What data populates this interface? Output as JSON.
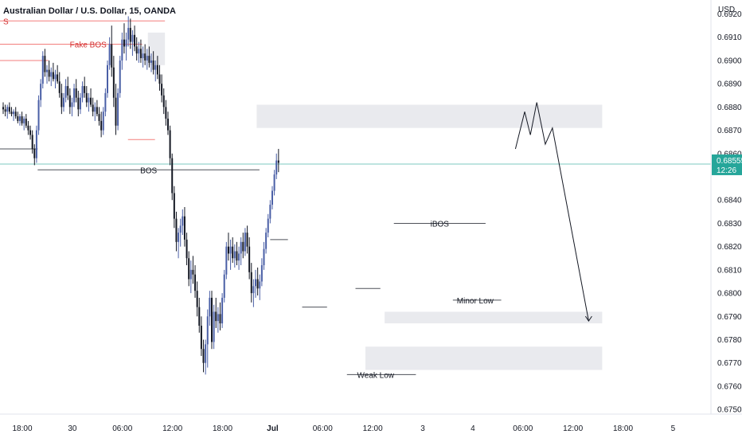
{
  "header": {
    "title": "Australian Dollar / U.S. Dollar, 15, OANDA",
    "currency": "USD"
  },
  "price_tag": {
    "price": "0.68555",
    "countdown": "12:26"
  },
  "colors": {
    "up": "#4a5fa6",
    "down": "#131722",
    "accent_line": "#26a69a",
    "tag_bg": "#26a69a",
    "zone": "#e9eaee",
    "bos_red": "#ef5350"
  },
  "chart_data": {
    "type": "candlestick",
    "title": "Australian Dollar / U.S. Dollar, 15, OANDA",
    "ylim": [
      0.6748,
      0.6926
    ],
    "y_ticks": [
      {
        "label": "0.69200",
        "value": 0.692
      },
      {
        "label": "0.69100",
        "value": 0.691
      },
      {
        "label": "0.69000",
        "value": 0.69
      },
      {
        "label": "0.68900",
        "value": 0.689
      },
      {
        "label": "0.68800",
        "value": 0.688
      },
      {
        "label": "0.68700",
        "value": 0.687
      },
      {
        "label": "0.68600",
        "value": 0.686
      },
      {
        "label": "0.68400",
        "value": 0.684
      },
      {
        "label": "0.68300",
        "value": 0.683
      },
      {
        "label": "0.68200",
        "value": 0.682
      },
      {
        "label": "0.68100",
        "value": 0.681
      },
      {
        "label": "0.68000",
        "value": 0.68
      },
      {
        "label": "0.67900",
        "value": 0.679
      },
      {
        "label": "0.67800",
        "value": 0.678
      },
      {
        "label": "0.67700",
        "value": 0.677
      },
      {
        "label": "0.67600",
        "value": 0.676
      },
      {
        "label": "0.67500",
        "value": 0.675
      }
    ],
    "x_ticks": [
      {
        "label": "18:00",
        "index": 0
      },
      {
        "label": "30",
        "index": 24
      },
      {
        "label": "06:00",
        "index": 48
      },
      {
        "label": "12:00",
        "index": 72
      },
      {
        "label": "18:00",
        "index": 96
      },
      {
        "label": "Jul",
        "index": 120
      },
      {
        "label": "06:00",
        "index": 144
      },
      {
        "label": "12:00",
        "index": 168
      },
      {
        "label": "3",
        "index": 192
      },
      {
        "label": "4",
        "index": 216
      },
      {
        "label": "06:00",
        "index": 240
      },
      {
        "label": "12:00",
        "index": 264
      },
      {
        "label": "18:00",
        "index": 288
      },
      {
        "label": "5",
        "index": 312
      }
    ],
    "series": [
      {
        "values": [
          [
            0.688,
            0.6882,
            0.6877,
            0.6879
          ],
          [
            0.6879,
            0.6881,
            0.6876,
            0.6878
          ],
          [
            0.6878,
            0.6881,
            0.6875,
            0.688
          ],
          [
            0.688,
            0.6882,
            0.6877,
            0.6878
          ],
          [
            0.6878,
            0.688,
            0.6876,
            0.6877
          ],
          [
            0.6877,
            0.6879,
            0.6874,
            0.6878
          ],
          [
            0.6878,
            0.688,
            0.6875,
            0.6876
          ],
          [
            0.6876,
            0.6878,
            0.6873,
            0.6874
          ],
          [
            0.6874,
            0.6877,
            0.6872,
            0.6876
          ],
          [
            0.6876,
            0.6878,
            0.6872,
            0.6873
          ],
          [
            0.6873,
            0.6876,
            0.687,
            0.6875
          ],
          [
            0.6875,
            0.6877,
            0.6871,
            0.6872
          ],
          [
            0.6872,
            0.6874,
            0.6868,
            0.687
          ],
          [
            0.687,
            0.6872,
            0.6866,
            0.6868
          ],
          [
            0.6868,
            0.687,
            0.686,
            0.6862
          ],
          [
            0.6862,
            0.6864,
            0.6855,
            0.6858
          ],
          [
            0.6858,
            0.6872,
            0.6856,
            0.687
          ],
          [
            0.687,
            0.6885,
            0.6868,
            0.6883
          ],
          [
            0.6883,
            0.6892,
            0.688,
            0.689
          ],
          [
            0.689,
            0.6904,
            0.6888,
            0.6902
          ],
          [
            0.6902,
            0.6905,
            0.6893,
            0.6895
          ],
          [
            0.6895,
            0.6898,
            0.689,
            0.6896
          ],
          [
            0.6896,
            0.69,
            0.6891,
            0.6893
          ],
          [
            0.6893,
            0.6897,
            0.6889,
            0.6895
          ],
          [
            0.6895,
            0.6899,
            0.6891,
            0.6892
          ],
          [
            0.6892,
            0.6896,
            0.6888,
            0.6894
          ],
          [
            0.6894,
            0.6898,
            0.689,
            0.6891
          ],
          [
            0.6891,
            0.6895,
            0.6884,
            0.6886
          ],
          [
            0.6886,
            0.689,
            0.6877,
            0.688
          ],
          [
            0.688,
            0.6886,
            0.6878,
            0.6884
          ],
          [
            0.6884,
            0.6892,
            0.6882,
            0.6889
          ],
          [
            0.6889,
            0.6893,
            0.6883,
            0.6885
          ],
          [
            0.6885,
            0.6888,
            0.6877,
            0.688
          ],
          [
            0.688,
            0.6884,
            0.6876,
            0.6882
          ],
          [
            0.6882,
            0.689,
            0.688,
            0.6888
          ],
          [
            0.6888,
            0.6892,
            0.6882,
            0.6884
          ],
          [
            0.6884,
            0.6887,
            0.6876,
            0.6879
          ],
          [
            0.6879,
            0.6886,
            0.6877,
            0.6884
          ],
          [
            0.6884,
            0.6891,
            0.6882,
            0.6889
          ],
          [
            0.6889,
            0.6893,
            0.6884,
            0.6886
          ],
          [
            0.6886,
            0.6889,
            0.688,
            0.6882
          ],
          [
            0.6882,
            0.6886,
            0.6878,
            0.6884
          ],
          [
            0.6884,
            0.6888,
            0.688,
            0.6881
          ],
          [
            0.6881,
            0.6884,
            0.6876,
            0.6878
          ],
          [
            0.6878,
            0.6882,
            0.6874,
            0.688
          ],
          [
            0.688,
            0.6883,
            0.6876,
            0.6877
          ],
          [
            0.6877,
            0.688,
            0.6872,
            0.6874
          ],
          [
            0.6874,
            0.6878,
            0.6867,
            0.687
          ],
          [
            0.687,
            0.688,
            0.6868,
            0.6878
          ],
          [
            0.6878,
            0.6888,
            0.6876,
            0.6886
          ],
          [
            0.6886,
            0.69,
            0.6884,
            0.6898
          ],
          [
            0.6898,
            0.691,
            0.6896,
            0.6907
          ],
          [
            0.6907,
            0.6915,
            0.6893,
            0.6897
          ],
          [
            0.6897,
            0.6902,
            0.688,
            0.6884
          ],
          [
            0.6884,
            0.689,
            0.6868,
            0.6872
          ],
          [
            0.6872,
            0.6888,
            0.687,
            0.6886
          ],
          [
            0.6886,
            0.6902,
            0.6884,
            0.69
          ],
          [
            0.69,
            0.6912,
            0.6896,
            0.6909
          ],
          [
            0.6909,
            0.6916,
            0.6903,
            0.6906
          ],
          [
            0.6906,
            0.6912,
            0.69,
            0.6909
          ],
          [
            0.6909,
            0.6919,
            0.6906,
            0.6914
          ],
          [
            0.6914,
            0.6918,
            0.6905,
            0.6908
          ],
          [
            0.6908,
            0.6913,
            0.6902,
            0.6911
          ],
          [
            0.6911,
            0.6915,
            0.6904,
            0.6906
          ],
          [
            0.6906,
            0.691,
            0.69,
            0.6903
          ],
          [
            0.6903,
            0.6908,
            0.6899,
            0.6905
          ],
          [
            0.6905,
            0.6909,
            0.6899,
            0.6901
          ],
          [
            0.6901,
            0.6906,
            0.6897,
            0.6903
          ],
          [
            0.6903,
            0.6907,
            0.6898,
            0.69
          ],
          [
            0.69,
            0.6905,
            0.6896,
            0.6902
          ],
          [
            0.6902,
            0.6906,
            0.6897,
            0.6899
          ],
          [
            0.6899,
            0.6903,
            0.6895,
            0.69
          ],
          [
            0.69,
            0.6904,
            0.6894,
            0.6896
          ],
          [
            0.6896,
            0.69,
            0.6891,
            0.6898
          ],
          [
            0.6898,
            0.6902,
            0.6892,
            0.6894
          ],
          [
            0.6894,
            0.6898,
            0.6887,
            0.689
          ],
          [
            0.689,
            0.6894,
            0.6882,
            0.6885
          ],
          [
            0.6885,
            0.6888,
            0.6877,
            0.688
          ],
          [
            0.688,
            0.6883,
            0.6872,
            0.6875
          ],
          [
            0.6875,
            0.6878,
            0.6868,
            0.687
          ],
          [
            0.687,
            0.6872,
            0.6855,
            0.6858
          ],
          [
            0.6858,
            0.686,
            0.684,
            0.6843
          ],
          [
            0.6843,
            0.6846,
            0.6828,
            0.6832
          ],
          [
            0.6832,
            0.6835,
            0.6818,
            0.6822
          ],
          [
            0.6822,
            0.6828,
            0.6815,
            0.6826
          ],
          [
            0.6826,
            0.6832,
            0.682,
            0.6829
          ],
          [
            0.6829,
            0.6836,
            0.6825,
            0.6833
          ],
          [
            0.6833,
            0.6837,
            0.682,
            0.6823
          ],
          [
            0.6823,
            0.6826,
            0.6812,
            0.6815
          ],
          [
            0.6815,
            0.6818,
            0.6803,
            0.6806
          ],
          [
            0.6806,
            0.6814,
            0.68,
            0.681
          ],
          [
            0.681,
            0.6816,
            0.6804,
            0.6808
          ],
          [
            0.6808,
            0.6812,
            0.6798,
            0.6801
          ],
          [
            0.6801,
            0.6805,
            0.679,
            0.6794
          ],
          [
            0.6794,
            0.6798,
            0.6783,
            0.6786
          ],
          [
            0.6786,
            0.679,
            0.6773,
            0.6776
          ],
          [
            0.6776,
            0.678,
            0.6766,
            0.677
          ],
          [
            0.677,
            0.678,
            0.6765,
            0.6778
          ],
          [
            0.6778,
            0.6793,
            0.6768,
            0.679
          ],
          [
            0.679,
            0.6801,
            0.6786,
            0.6798
          ],
          [
            0.6798,
            0.6801,
            0.6776,
            0.6779
          ],
          [
            0.6779,
            0.6795,
            0.6776,
            0.6792
          ],
          [
            0.6792,
            0.6798,
            0.6785,
            0.6788
          ],
          [
            0.6788,
            0.6794,
            0.6783,
            0.6791
          ],
          [
            0.6791,
            0.6796,
            0.6784,
            0.6787
          ],
          [
            0.6787,
            0.68,
            0.6785,
            0.6798
          ],
          [
            0.6798,
            0.681,
            0.6796,
            0.6808
          ],
          [
            0.6808,
            0.6822,
            0.6806,
            0.682
          ],
          [
            0.682,
            0.6826,
            0.6814,
            0.6817
          ],
          [
            0.6817,
            0.6823,
            0.681,
            0.682
          ],
          [
            0.682,
            0.6824,
            0.6813,
            0.6815
          ],
          [
            0.6815,
            0.6821,
            0.6811,
            0.6818
          ],
          [
            0.6818,
            0.6822,
            0.6812,
            0.6814
          ],
          [
            0.6814,
            0.682,
            0.681,
            0.6817
          ],
          [
            0.6817,
            0.6824,
            0.6812,
            0.6822
          ],
          [
            0.6822,
            0.6826,
            0.6815,
            0.6818
          ],
          [
            0.6818,
            0.6828,
            0.6816,
            0.6826
          ],
          [
            0.6826,
            0.6829,
            0.6817,
            0.682
          ],
          [
            0.682,
            0.6824,
            0.6806,
            0.6809
          ],
          [
            0.6809,
            0.6813,
            0.6796,
            0.68
          ],
          [
            0.68,
            0.6806,
            0.6794,
            0.6803
          ],
          [
            0.6803,
            0.681,
            0.6798,
            0.6806
          ],
          [
            0.6806,
            0.6811,
            0.6799,
            0.6802
          ],
          [
            0.6802,
            0.6808,
            0.6797,
            0.6805
          ],
          [
            0.6805,
            0.6815,
            0.6803,
            0.6812
          ],
          [
            0.6812,
            0.6822,
            0.681,
            0.6819
          ],
          [
            0.6819,
            0.6828,
            0.6817,
            0.6826
          ],
          [
            0.6826,
            0.6834,
            0.6824,
            0.6832
          ],
          [
            0.6832,
            0.684,
            0.683,
            0.6838
          ],
          [
            0.6838,
            0.6846,
            0.6836,
            0.6844
          ],
          [
            0.6844,
            0.6853,
            0.6842,
            0.6851
          ],
          [
            0.6851,
            0.686,
            0.6849,
            0.6857
          ],
          [
            0.6857,
            0.6862,
            0.6852,
            0.6856
          ]
        ]
      }
    ],
    "zones": [
      {
        "x_start": 0.361,
        "x_end": 0.847,
        "y_low": 0.6871,
        "y_high": 0.6881
      },
      {
        "x_start": 0.208,
        "x_end": 0.232,
        "y_low": 0.6898,
        "y_high": 0.6912
      },
      {
        "x_start": 0.541,
        "x_end": 0.847,
        "y_low": 0.6787,
        "y_high": 0.6792
      },
      {
        "x_start": 0.514,
        "x_end": 0.847,
        "y_low": 0.6767,
        "y_high": 0.6777
      }
    ],
    "levels": [
      {
        "label": "S",
        "price": 0.6917,
        "x_start": 0.0,
        "x_end": 0.232,
        "color": "#ef5350"
      },
      {
        "label": "Fake BOS",
        "price": 0.6907,
        "x_start": 0.0,
        "x_end": 0.2,
        "color": "#ef5350"
      },
      {
        "label": "",
        "price": 0.69,
        "x_start": 0.0,
        "x_end": 0.068,
        "color": "#ef5350"
      },
      {
        "label": "",
        "price": 0.6866,
        "x_start": 0.18,
        "x_end": 0.218,
        "color": "#ef5350"
      },
      {
        "label": "",
        "price": 0.6862,
        "x_start": 0.0,
        "x_end": 0.053,
        "color": "#131722"
      },
      {
        "label": "BOS",
        "price": 0.6853,
        "x_start": 0.053,
        "x_end": 0.365,
        "color": "#131722"
      },
      {
        "label": "",
        "price": 0.6823,
        "x_start": 0.38,
        "x_end": 0.405,
        "color": "#131722"
      },
      {
        "label": "",
        "price": 0.6794,
        "x_start": 0.425,
        "x_end": 0.46,
        "color": "#131722"
      },
      {
        "label": "iBOS",
        "price": 0.683,
        "x_start": 0.554,
        "x_end": 0.683,
        "color": "#131722"
      },
      {
        "label": "",
        "price": 0.6802,
        "x_start": 0.5,
        "x_end": 0.535,
        "color": "#131722"
      },
      {
        "label": "Minor Low",
        "price": 0.6797,
        "x_start": 0.637,
        "x_end": 0.705,
        "color": "#131722"
      },
      {
        "label": "Weak Low",
        "price": 0.6765,
        "x_start": 0.488,
        "x_end": 0.585,
        "color": "#131722"
      }
    ],
    "projection": [
      {
        "x": 0.725,
        "price": 0.6862
      },
      {
        "x": 0.738,
        "price": 0.6878
      },
      {
        "x": 0.746,
        "price": 0.6868
      },
      {
        "x": 0.755,
        "price": 0.6882
      },
      {
        "x": 0.767,
        "price": 0.6864
      },
      {
        "x": 0.777,
        "price": 0.6871
      },
      {
        "x": 0.828,
        "price": 0.6788
      }
    ],
    "current_price": 0.68555
  }
}
